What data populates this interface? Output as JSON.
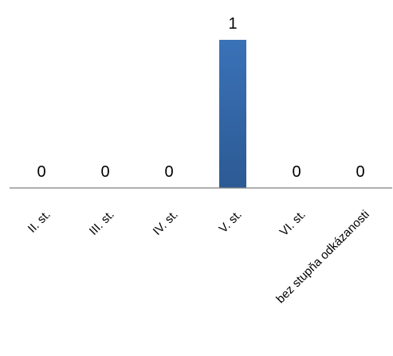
{
  "chart_data": {
    "type": "bar",
    "categories": [
      "II. st.",
      "III. st.",
      "IV. st.",
      "V. st.",
      "VI. st.",
      "bez stupňa odkázanosti"
    ],
    "values": [
      0,
      0,
      0,
      1,
      0,
      0
    ],
    "data_labels": [
      "0",
      "0",
      "0",
      "1",
      "0",
      "0"
    ],
    "title": "",
    "xlabel": "",
    "ylabel": "",
    "ylim": [
      0,
      1
    ],
    "grid": false,
    "legend": "none",
    "bar_color": "#3a72b8",
    "bar_color_dark": "#2c5a94",
    "axis_color": "#7f7f7f"
  }
}
